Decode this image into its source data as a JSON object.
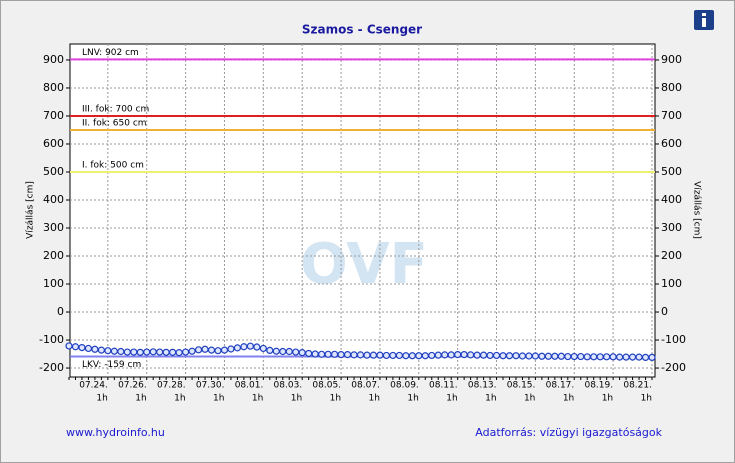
{
  "chart_data": {
    "type": "line",
    "title": "Szamos - Csenger",
    "y_label": "Vízállás [cm]",
    "y2_label": "Vízállás [cm]",
    "watermark": "OVF",
    "footer_left": "www.hydroinfo.hu",
    "footer_right": "Adatforrás: vízügyi igazgatóságok",
    "color": "#1f3fbf",
    "grid": true,
    "ylim": [
      -232,
      957
    ],
    "yticks": [
      -200,
      -100,
      0,
      100,
      200,
      300,
      400,
      500,
      600,
      700,
      800,
      900
    ],
    "y2lim": [
      -232,
      957
    ],
    "y2ticks": [
      -200,
      -100,
      0,
      100,
      200,
      300,
      400,
      500,
      600,
      700,
      800,
      900
    ],
    "thresholds": [
      {
        "label": "LNV: 902 cm",
        "value": 902,
        "color": "#e040e0"
      },
      {
        "label": "III. fok: 700 cm",
        "value": 700,
        "color": "#e02020"
      },
      {
        "label": "II. fok: 650 cm",
        "value": 650,
        "color": "#f0b030"
      },
      {
        "label": "I. fok: 500 cm",
        "value": 500,
        "color": "#f0f070"
      },
      {
        "label": "LKV: -159 cm",
        "value": -159,
        "color": "#8080f0"
      }
    ],
    "categories": [
      null,
      null,
      null,
      null,
      null,
      null,
      [
        "07.24.",
        "1h"
      ],
      null,
      null,
      null,
      null,
      null,
      [
        "07.26.",
        "1h"
      ],
      null,
      null,
      null,
      null,
      null,
      [
        "07.28.",
        "1h"
      ],
      null,
      null,
      null,
      null,
      null,
      [
        "07.30.",
        "1h"
      ],
      null,
      null,
      null,
      null,
      null,
      [
        "08.01.",
        "1h"
      ],
      null,
      null,
      null,
      null,
      null,
      [
        "08.03.",
        "1h"
      ],
      null,
      null,
      null,
      null,
      null,
      [
        "08.05.",
        "1h"
      ],
      null,
      null,
      null,
      null,
      null,
      [
        "08.07.",
        "1h"
      ],
      null,
      null,
      null,
      null,
      null,
      [
        "08.09.",
        "1h"
      ],
      null,
      null,
      null,
      null,
      null,
      [
        "08.11.",
        "1h"
      ],
      null,
      null,
      null,
      null,
      null,
      [
        "08.13.",
        "1h"
      ],
      null,
      null,
      null,
      null,
      null,
      [
        "08.15.",
        "1h"
      ],
      null,
      null,
      null,
      null,
      null,
      [
        "08.17.",
        "1h"
      ],
      null,
      null,
      null,
      null,
      null,
      [
        "08.19.",
        "1h"
      ],
      null,
      null,
      null,
      null,
      null,
      [
        "08.21.",
        "1h"
      ]
    ],
    "values": [
      -121,
      -124,
      -127,
      -130,
      -133,
      -136,
      -138,
      -140,
      -141,
      -143,
      -143,
      -144,
      -143,
      -142,
      -143,
      -144,
      -144,
      -145,
      -143,
      -140,
      -135,
      -133,
      -136,
      -138,
      -136,
      -132,
      -128,
      -124,
      -122,
      -125,
      -130,
      -137,
      -140,
      -141,
      -141,
      -143,
      -145,
      -148,
      -150,
      -151,
      -151,
      -151,
      -152,
      -152,
      -153,
      -153,
      -154,
      -154,
      -154,
      -155,
      -155,
      -155,
      -156,
      -156,
      -156,
      -156,
      -155,
      -154,
      -153,
      -153,
      -152,
      -152,
      -153,
      -154,
      -154,
      -155,
      -155,
      -156,
      -156,
      -156,
      -157,
      -157,
      -157,
      -158,
      -158,
      -158,
      -158,
      -159,
      -159,
      -159,
      -160,
      -160,
      -160,
      -160,
      -160,
      -161,
      -161,
      -161,
      -161,
      -162,
      -162
    ]
  }
}
